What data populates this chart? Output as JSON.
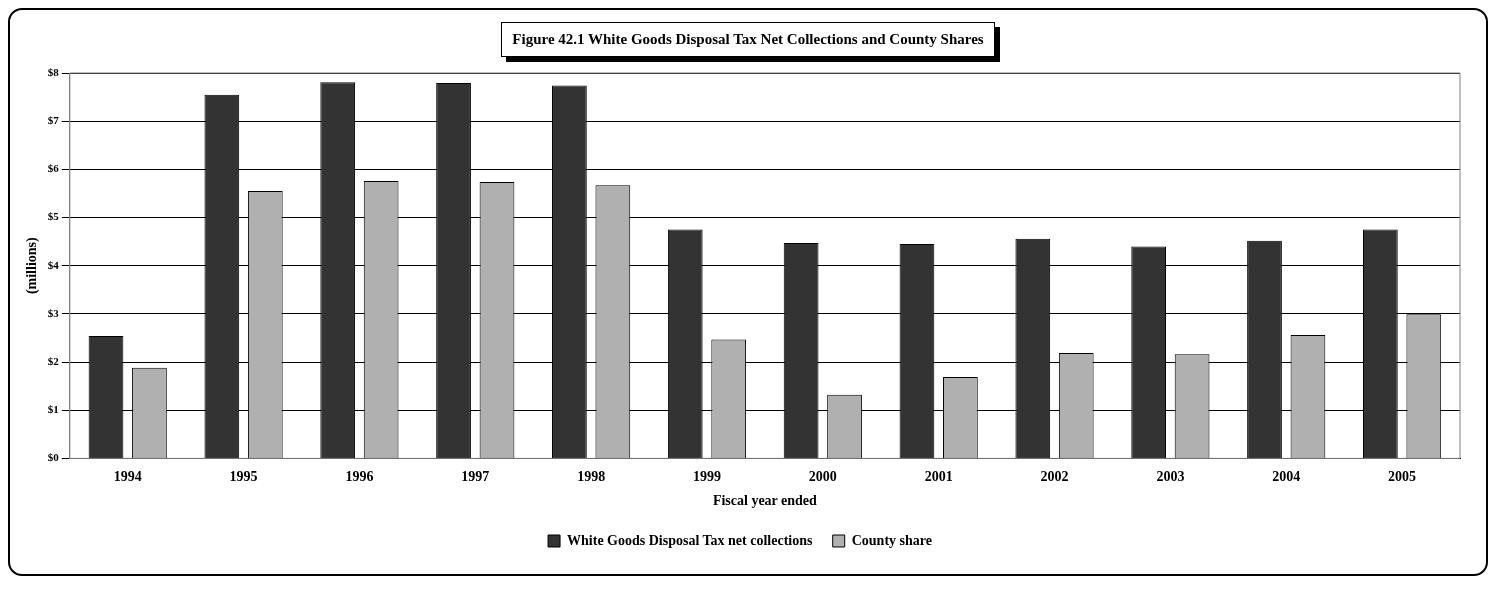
{
  "chart_data": {
    "type": "bar",
    "title": "Figure 42.1 White Goods Disposal Tax Net Collections and County Shares",
    "xlabel": "Fiscal year ended",
    "ylabel": "(millions)",
    "categories": [
      "1994",
      "1995",
      "1996",
      "1997",
      "1998",
      "1999",
      "2000",
      "2001",
      "2002",
      "2003",
      "2004",
      "2005"
    ],
    "series": [
      {
        "name": "White Goods Disposal Tax net collections",
        "color": "#333333",
        "values": [
          2.54,
          7.55,
          7.81,
          7.79,
          7.74,
          4.75,
          4.47,
          4.45,
          4.56,
          4.4,
          4.52,
          4.75
        ]
      },
      {
        "name": "County share",
        "color": "#b0b0b0",
        "values": [
          1.88,
          5.55,
          5.76,
          5.74,
          5.67,
          2.47,
          1.32,
          1.69,
          2.19,
          2.16,
          2.56,
          2.99
        ]
      }
    ],
    "ylim": [
      0,
      8
    ],
    "yticks": [
      {
        "value": 0,
        "label": "$0"
      },
      {
        "value": 1,
        "label": "$1"
      },
      {
        "value": 2,
        "label": "$2"
      },
      {
        "value": 3,
        "label": "$3"
      },
      {
        "value": 4,
        "label": "$4"
      },
      {
        "value": 5,
        "label": "$5"
      },
      {
        "value": 6,
        "label": "$6"
      },
      {
        "value": 7,
        "label": "$7"
      },
      {
        "value": 8,
        "label": "$8"
      }
    ],
    "grid": "y",
    "legend": "bottom"
  }
}
